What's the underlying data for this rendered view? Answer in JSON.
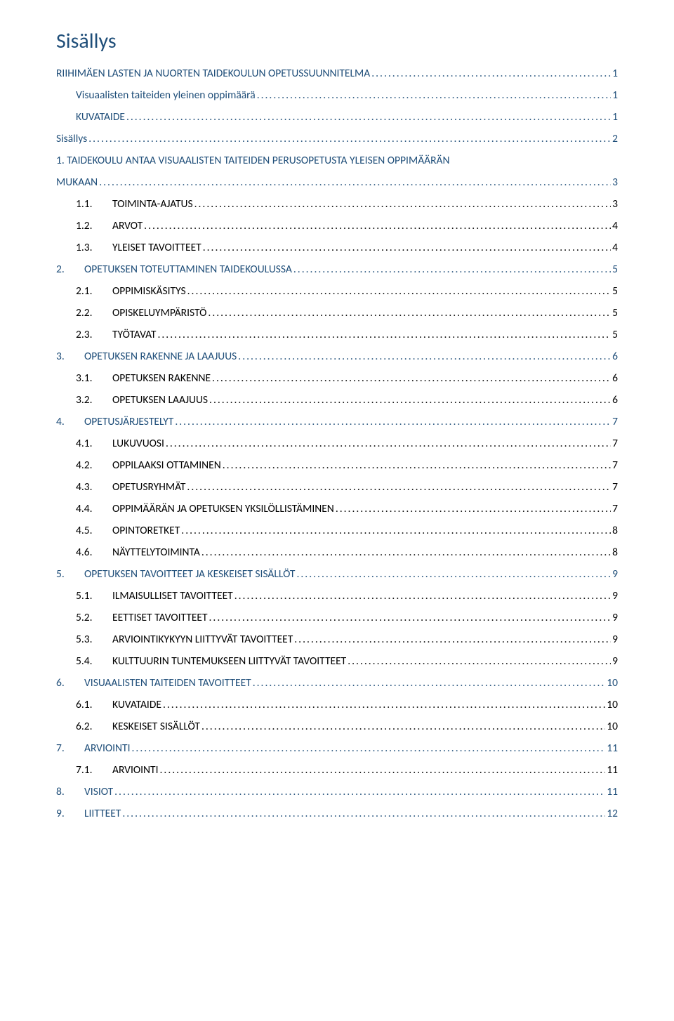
{
  "title": "Sisällys",
  "colors": {
    "heading": "#1f4e79",
    "link": "#1f4e79",
    "body": "#000000",
    "background": "#ffffff"
  },
  "fonts": {
    "heading_size_pt": 22,
    "row_size_pt": 12,
    "family": "Calibri"
  },
  "toc": [
    {
      "level": 0,
      "num": "",
      "label": "RIIHIMÄEN LASTEN JA NUORTEN TAIDEKOULUN OPETUSSUUNNITELMA",
      "page": "1",
      "style": "link"
    },
    {
      "level": 1,
      "num": "",
      "label": "Visuaalisten taiteiden yleinen oppimäärä",
      "page": "1",
      "style": "link"
    },
    {
      "level": 1,
      "num": "",
      "label": "KUVATAIDE",
      "page": "1",
      "style": "link"
    },
    {
      "level": 0,
      "num": "",
      "label": "Sisällys",
      "page": "2",
      "style": "link"
    },
    {
      "level": 0,
      "num": "1.",
      "label": "TAIDEKOULU ANTAA VISUAALISTEN TAITEIDEN PERUSOPETUSTA YLEISEN OPPIMÄÄRÄN MUKAAN",
      "page": "3",
      "style": "link",
      "wrap": true
    },
    {
      "level": 2,
      "num": "1.1.",
      "label": "TOIMINTA-AJATUS",
      "page": "3",
      "style": "body"
    },
    {
      "level": 2,
      "num": "1.2.",
      "label": "ARVOT",
      "page": "4",
      "style": "body"
    },
    {
      "level": 2,
      "num": "1.3.",
      "label": "YLEISET TAVOITTEET",
      "page": "4",
      "style": "body"
    },
    {
      "level": 0,
      "num": "2.",
      "label": "OPETUKSEN TOTEUTTAMINEN TAIDEKOULUSSA",
      "page": "5",
      "style": "link"
    },
    {
      "level": 2,
      "num": "2.1.",
      "label": "OPPIMISKÄSITYS",
      "page": "5",
      "style": "body"
    },
    {
      "level": 2,
      "num": "2.2.",
      "label": "OPISKELUYMPÄRISTÖ",
      "page": "5",
      "style": "body"
    },
    {
      "level": 2,
      "num": "2.3.",
      "label": "TYÖTAVAT",
      "page": "5",
      "style": "body"
    },
    {
      "level": 0,
      "num": "3.",
      "label": "OPETUKSEN RAKENNE JA LAAJUUS",
      "page": "6",
      "style": "link"
    },
    {
      "level": 2,
      "num": "3.1.",
      "label": "OPETUKSEN RAKENNE",
      "page": "6",
      "style": "body"
    },
    {
      "level": 2,
      "num": "3.2.",
      "label": "OPETUKSEN LAAJUUS",
      "page": "6",
      "style": "body"
    },
    {
      "level": 0,
      "num": "4.",
      "label": "OPETUSJÄRJESTELYT",
      "page": "7",
      "style": "link"
    },
    {
      "level": 2,
      "num": "4.1.",
      "label": "LUKUVUOSI",
      "page": "7",
      "style": "body"
    },
    {
      "level": 2,
      "num": "4.2.",
      "label": "OPPILAAKSI OTTAMINEN",
      "page": "7",
      "style": "body"
    },
    {
      "level": 2,
      "num": "4.3.",
      "label": "OPETUSRYHMÄT",
      "page": "7",
      "style": "body"
    },
    {
      "level": 2,
      "num": "4.4.",
      "label": "OPPIMÄÄRÄN JA OPETUKSEN YKSILÖLLISTÄMINEN",
      "page": "7",
      "style": "body"
    },
    {
      "level": 2,
      "num": "4.5.",
      "label": "OPINTORETKET",
      "page": "8",
      "style": "body"
    },
    {
      "level": 2,
      "num": "4.6.",
      "label": "NÄYTTELYTOIMINTA",
      "page": "8",
      "style": "body"
    },
    {
      "level": 0,
      "num": "5.",
      "label": "OPETUKSEN TAVOITTEET JA KESKEISET SISÄLLÖT",
      "page": "9",
      "style": "link"
    },
    {
      "level": 2,
      "num": "5.1.",
      "label": "ILMAISULLISET TAVOITTEET",
      "page": "9",
      "style": "body"
    },
    {
      "level": 2,
      "num": "5.2.",
      "label": "EETTISET TAVOITTEET",
      "page": "9",
      "style": "body"
    },
    {
      "level": 2,
      "num": "5.3.",
      "label": "ARVIOINTIKYKYYN LIITTYVÄT TAVOITTEET",
      "page": "9",
      "style": "body"
    },
    {
      "level": 2,
      "num": "5.4.",
      "label": "KULTTUURIN TUNTEMUKSEEN LIITTYVÄT TAVOITTEET",
      "page": "9",
      "style": "body"
    },
    {
      "level": 0,
      "num": "6.",
      "label": "VISUAALISTEN TAITEIDEN  TAVOITTEET",
      "page": "10",
      "style": "link"
    },
    {
      "level": 2,
      "num": "6.1.",
      "label": "KUVATAIDE",
      "page": "10",
      "style": "body"
    },
    {
      "level": 2,
      "num": "6.2.",
      "label": "KESKEISET SISÄLLÖT",
      "page": "10",
      "style": "body"
    },
    {
      "level": 0,
      "num": "7.",
      "label": "ARVIOINTI",
      "page": "11",
      "style": "link"
    },
    {
      "level": 2,
      "num": "7.1.",
      "label": "ARVIOINTI",
      "page": "11",
      "style": "body"
    },
    {
      "level": 0,
      "num": "8.",
      "label": "VISIOT",
      "page": "11",
      "style": "link"
    },
    {
      "level": 0,
      "num": "9.",
      "label": "LIITTEET",
      "page": "12",
      "style": "link"
    }
  ]
}
